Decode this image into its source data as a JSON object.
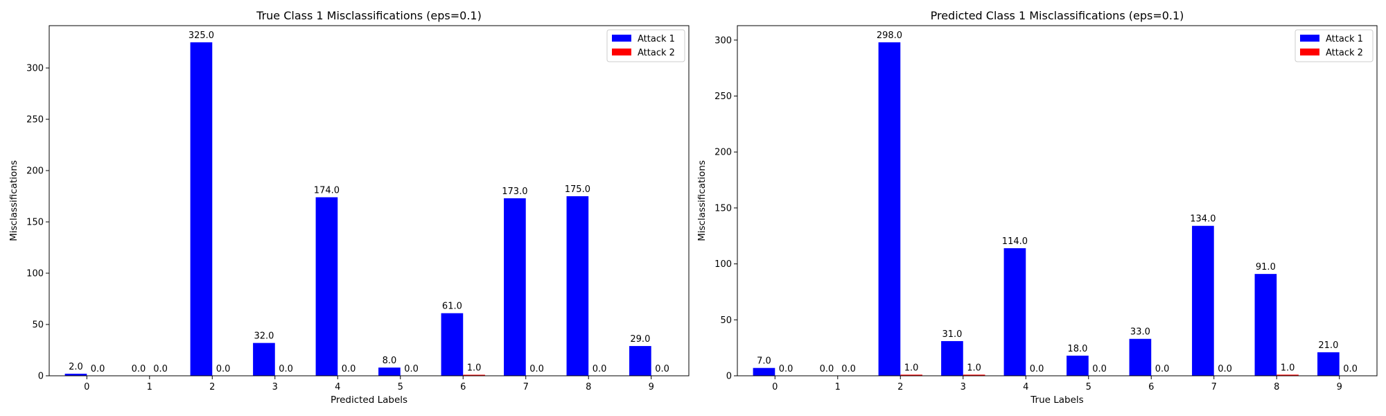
{
  "chart_data": [
    {
      "type": "bar",
      "title": "True Class 1 Misclassifications (eps=0.1)",
      "xlabel": "Predicted Labels",
      "ylabel": "Misclassifications",
      "categories": [
        "0",
        "1",
        "2",
        "3",
        "4",
        "5",
        "6",
        "7",
        "8",
        "9"
      ],
      "ylim": [
        0,
        341.25
      ],
      "yticks": [
        0,
        50,
        100,
        150,
        200,
        250,
        300
      ],
      "legend": "top-right",
      "grid": false,
      "series": [
        {
          "name": "Attack 1",
          "color": "#0000ff",
          "values": [
            2.0,
            0.0,
            325.0,
            32.0,
            174.0,
            8.0,
            61.0,
            173.0,
            175.0,
            29.0
          ],
          "labels": [
            "2.0",
            "0.0",
            "325.0",
            "32.0",
            "174.0",
            "8.0",
            "61.0",
            "173.0",
            "175.0",
            "29.0"
          ]
        },
        {
          "name": "Attack 2",
          "color": "#ff0000",
          "values": [
            0.0,
            0.0,
            0.0,
            0.0,
            0.0,
            0.0,
            1.0,
            0.0,
            0.0,
            0.0
          ],
          "labels": [
            "0.0",
            "0.0",
            "0.0",
            "0.0",
            "0.0",
            "0.0",
            "1.0",
            "0.0",
            "0.0",
            "0.0"
          ]
        }
      ]
    },
    {
      "type": "bar",
      "title": "Predicted Class 1 Misclassifications (eps=0.1)",
      "xlabel": "True Labels",
      "ylabel": "Misclassifications",
      "categories": [
        "0",
        "1",
        "2",
        "3",
        "4",
        "5",
        "6",
        "7",
        "8",
        "9"
      ],
      "ylim": [
        0,
        312.9
      ],
      "yticks": [
        0,
        50,
        100,
        150,
        200,
        250,
        300
      ],
      "legend": "top-right",
      "grid": false,
      "series": [
        {
          "name": "Attack 1",
          "color": "#0000ff",
          "values": [
            7.0,
            0.0,
            298.0,
            31.0,
            114.0,
            18.0,
            33.0,
            134.0,
            91.0,
            21.0
          ],
          "labels": [
            "7.0",
            "0.0",
            "298.0",
            "31.0",
            "114.0",
            "18.0",
            "33.0",
            "134.0",
            "91.0",
            "21.0"
          ]
        },
        {
          "name": "Attack 2",
          "color": "#ff0000",
          "values": [
            0.0,
            0.0,
            1.0,
            1.0,
            0.0,
            0.0,
            0.0,
            0.0,
            1.0,
            0.0
          ],
          "labels": [
            "0.0",
            "0.0",
            "1.0",
            "1.0",
            "0.0",
            "0.0",
            "0.0",
            "0.0",
            "1.0",
            "0.0"
          ]
        }
      ]
    }
  ]
}
